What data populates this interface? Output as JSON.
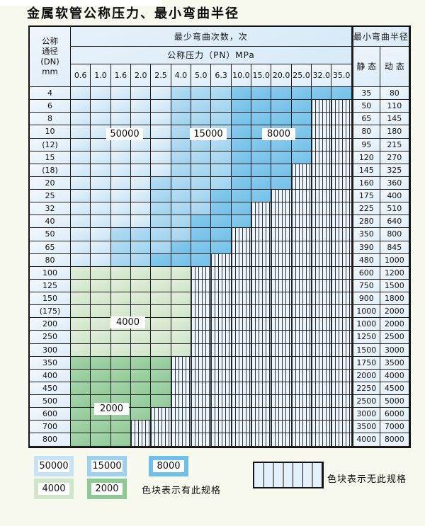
{
  "title": "金属软管公称压力、最小弯曲半径",
  "colors": {
    "c50000": "#c8e3f4",
    "c15000": "#9cd2ee",
    "c8000": "#70c0e8",
    "c4000": "#cfe4c7",
    "c2000": "#8fc995",
    "hatch_bg": "#eef5fb",
    "grid_line": "#1c1c1c",
    "page_bg": "#f7f8ee"
  },
  "table": {
    "header": {
      "dn_lines": [
        "公称",
        "通径",
        "(DN)",
        "mm"
      ],
      "min_bend_cycles_label": "最少弯曲次数，次",
      "min_bend_radius_label": "最小弯曲半径",
      "pressure_label": "公称压力（PN）MPa",
      "static_label": "静 态",
      "dynamic_label": "动 态",
      "pn_values": [
        "0.6",
        "1.0",
        "1.6",
        "2.0",
        "2.5",
        "4.0",
        "5.0",
        "6.3",
        "10.0",
        "15.0",
        "20.0",
        "25.0",
        "32.0",
        "35.0"
      ]
    },
    "cycle_legend_values": {
      "A": "50000",
      "B": "15000",
      "C": "8000",
      "D": "4000",
      "E": "2000",
      "X": "none"
    },
    "rows": [
      {
        "dn": "4",
        "cells": "AAAAABBBCCCCCC",
        "static": "35",
        "dynamic": "80"
      },
      {
        "dn": "6",
        "cells": "AAAAABBBCCCCXX",
        "static": "50",
        "dynamic": "110"
      },
      {
        "dn": "8",
        "cells": "AAAAABBBCCCCXX",
        "static": "65",
        "dynamic": "145"
      },
      {
        "dn": "10",
        "cells": "AAAAABBBCCCCXX",
        "static": "80",
        "dynamic": "180"
      },
      {
        "dn": "(12)",
        "cells": "AAAAABBBCCCCXX",
        "static": "95",
        "dynamic": "215"
      },
      {
        "dn": "15",
        "cells": "AAAAABBBCCCCXX",
        "static": "120",
        "dynamic": "270"
      },
      {
        "dn": "(18)",
        "cells": "AAAAABBBCCCXXX",
        "static": "145",
        "dynamic": "325"
      },
      {
        "dn": "20",
        "cells": "AAAABBBBCCCXXX",
        "static": "160",
        "dynamic": "360"
      },
      {
        "dn": "25",
        "cells": "AAAABBBCCCXXXX",
        "static": "175",
        "dynamic": "400"
      },
      {
        "dn": "32",
        "cells": "AAAABBBCCXXXXX",
        "static": "225",
        "dynamic": "510"
      },
      {
        "dn": "40",
        "cells": "AAAABBCCCXXXXX",
        "static": "280",
        "dynamic": "640"
      },
      {
        "dn": "50",
        "cells": "AABBBBCCXXXXXX",
        "static": "350",
        "dynamic": "800"
      },
      {
        "dn": "65",
        "cells": "AABBBCCCXXXXXX",
        "static": "390",
        "dynamic": "845"
      },
      {
        "dn": "80",
        "cells": "AABBCCCXXXXXXX",
        "static": "480",
        "dynamic": "1000"
      },
      {
        "dn": "100",
        "cells": "DDDDDDXXXXXXXX",
        "static": "600",
        "dynamic": "1200"
      },
      {
        "dn": "125",
        "cells": "DDDDDDXXXXXXXX",
        "static": "750",
        "dynamic": "1500"
      },
      {
        "dn": "150",
        "cells": "DDDDDDXXXXXXXX",
        "static": "900",
        "dynamic": "1800"
      },
      {
        "dn": "(175)",
        "cells": "DDDDDDXXXXXXXX",
        "static": "1000",
        "dynamic": "2000"
      },
      {
        "dn": "200",
        "cells": "DDDDDDXXXXXXXX",
        "static": "1000",
        "dynamic": "2000"
      },
      {
        "dn": "250",
        "cells": "DDDDDDXXXXXXXX",
        "static": "1250",
        "dynamic": "2500"
      },
      {
        "dn": "300",
        "cells": "DDDDDDXXXXXXXX",
        "static": "1500",
        "dynamic": "3000"
      },
      {
        "dn": "350",
        "cells": "EEEEEXXXXXXXXX",
        "static": "1750",
        "dynamic": "3500"
      },
      {
        "dn": "400",
        "cells": "EEEEEXXXXXXXXX",
        "static": "2000",
        "dynamic": "4000"
      },
      {
        "dn": "450",
        "cells": "EEEEEXXXXXXXXX",
        "static": "2250",
        "dynamic": "4500"
      },
      {
        "dn": "500",
        "cells": "EEEEEXXXXXXXXX",
        "static": "2500",
        "dynamic": "5000"
      },
      {
        "dn": "600",
        "cells": "EEEEXXXXXXXXXX",
        "static": "3000",
        "dynamic": "6000"
      },
      {
        "dn": "700",
        "cells": "EEEXXXXXXXXXXX",
        "static": "3500",
        "dynamic": "7000"
      },
      {
        "dn": "800",
        "cells": "EEEXXXXXXXXXXX",
        "static": "4000",
        "dynamic": "8000"
      }
    ]
  },
  "overlay_labels": [
    {
      "text": "50000"
    },
    {
      "text": "15000"
    },
    {
      "text": "8000"
    },
    {
      "text": "4000"
    },
    {
      "text": "2000"
    }
  ],
  "legend": {
    "items": [
      {
        "value": "50000",
        "border": "#c6e3f5"
      },
      {
        "value": "15000",
        "border": "#9cd2ef"
      },
      {
        "value": "8000",
        "border": "#6fc0e8"
      },
      {
        "value": "4000",
        "border": "#cfe6ca"
      },
      {
        "value": "2000",
        "border": "#8eca94"
      }
    ],
    "has_spec_text": "色块表示有此规格",
    "no_spec_text": "色块表示无此规格"
  }
}
